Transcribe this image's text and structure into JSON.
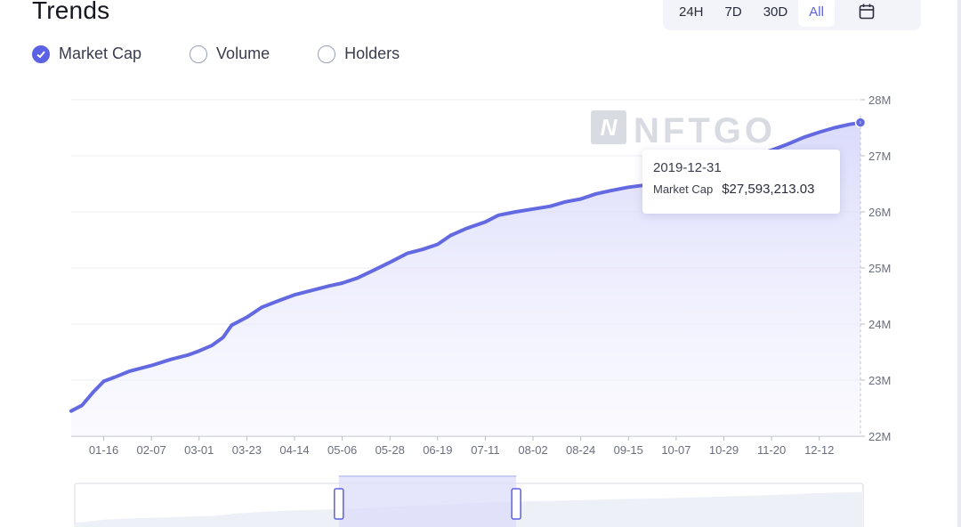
{
  "header": {
    "title": "Trends",
    "ranges": [
      {
        "label": "24H",
        "active": false
      },
      {
        "label": "7D",
        "active": false
      },
      {
        "label": "30D",
        "active": false
      },
      {
        "label": "All",
        "active": true
      }
    ],
    "calendar_icon": "calendar-icon"
  },
  "metrics": [
    {
      "label": "Market Cap",
      "checked": true
    },
    {
      "label": "Volume",
      "checked": false
    },
    {
      "label": "Holders",
      "checked": false
    }
  ],
  "watermark": "NFTGO",
  "tooltip": {
    "date": "2019-12-31",
    "series_label": "Market Cap",
    "value": "$27,593,213.03"
  },
  "colors": {
    "accent": "#5b62e3",
    "line": "#6369e0",
    "area_top": "#dcdcfb",
    "grid": "#ebedf2"
  },
  "chart_data": {
    "type": "area",
    "series": [
      {
        "name": "Market Cap",
        "x": [
          "2019-01-01",
          "2019-01-06",
          "2019-01-11",
          "2019-01-16",
          "2019-01-21",
          "2019-01-28",
          "2019-02-07",
          "2019-02-16",
          "2019-02-24",
          "2019-03-01",
          "2019-03-07",
          "2019-03-12",
          "2019-03-16",
          "2019-03-23",
          "2019-03-30",
          "2019-04-07",
          "2019-04-14",
          "2019-04-22",
          "2019-04-30",
          "2019-05-06",
          "2019-05-13",
          "2019-05-20",
          "2019-05-28",
          "2019-06-05",
          "2019-06-12",
          "2019-06-19",
          "2019-06-25",
          "2019-07-02",
          "2019-07-11",
          "2019-07-17",
          "2019-07-25",
          "2019-08-02",
          "2019-08-10",
          "2019-08-17",
          "2019-08-24",
          "2019-08-31",
          "2019-09-07",
          "2019-09-15",
          "2019-09-23",
          "2019-10-01",
          "2019-10-07",
          "2019-10-14",
          "2019-10-22",
          "2019-10-29",
          "2019-11-05",
          "2019-11-12",
          "2019-11-20",
          "2019-11-27",
          "2019-12-05",
          "2019-12-12",
          "2019-12-19",
          "2019-12-26",
          "2019-12-31"
        ],
        "y": [
          22.45,
          22.55,
          22.78,
          22.98,
          23.05,
          23.16,
          23.26,
          23.37,
          23.45,
          23.52,
          23.62,
          23.76,
          23.98,
          24.12,
          24.3,
          24.42,
          24.52,
          24.6,
          24.68,
          24.73,
          24.82,
          24.95,
          25.1,
          25.26,
          25.33,
          25.42,
          25.58,
          25.7,
          25.82,
          25.94,
          26.0,
          26.05,
          26.1,
          26.18,
          26.23,
          26.32,
          26.38,
          26.44,
          26.48,
          26.54,
          26.6,
          26.68,
          26.76,
          26.84,
          26.93,
          27.0,
          27.1,
          27.2,
          27.33,
          27.42,
          27.5,
          27.56,
          27.59
        ]
      }
    ],
    "x_tick_labels": [
      "01-16",
      "02-07",
      "03-01",
      "03-23",
      "04-14",
      "05-06",
      "05-28",
      "06-19",
      "07-11",
      "08-02",
      "08-24",
      "09-15",
      "10-07",
      "10-29",
      "11-20",
      "12-12"
    ],
    "y_tick_labels": [
      "22M",
      "23M",
      "24M",
      "25M",
      "26M",
      "27M",
      "28M"
    ],
    "ylim": [
      22,
      28
    ],
    "y_unit": "M",
    "xlim": [
      "2019-01-01",
      "2019-12-31"
    ],
    "grid": true,
    "legend": "none",
    "highlighted_point": {
      "x": "2019-12-31",
      "y": 27.593213
    },
    "zoom_window": [
      0.335,
      0.56
    ]
  }
}
